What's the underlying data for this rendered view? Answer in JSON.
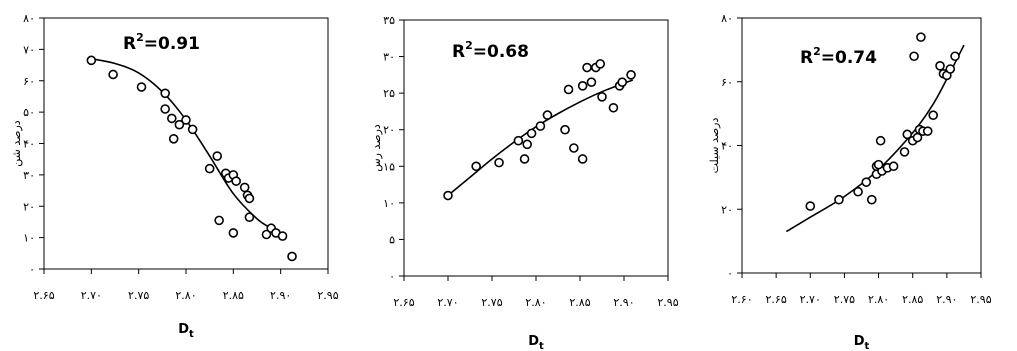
{
  "chart_data": [
    {
      "type": "scatter",
      "id": "sand",
      "ylabel": "درصد شن",
      "xlabel_main": "D",
      "xlabel_sub": "t",
      "r2_label": "R",
      "r2_exp": "2",
      "r2_value": "=0.91",
      "xlim": [
        2.65,
        2.95
      ],
      "ylim": [
        0,
        80
      ],
      "x_ticks": [
        2.65,
        2.7,
        2.75,
        2.8,
        2.85,
        2.9,
        2.95
      ],
      "x_tick_labels": [
        "۲.۶۵",
        "۲.۷۰",
        "۲.۷۵",
        "۲.۸۰",
        "۲.۸۵",
        "۲.۹۰",
        "۲.۹۵"
      ],
      "y_ticks": [
        0,
        10,
        20,
        30,
        40,
        50,
        60,
        70,
        80
      ],
      "y_tick_labels": [
        "۰",
        "۱۰",
        "۲۰",
        "۳۰",
        "۴۰",
        "۵۰",
        "۶۰",
        "۷۰",
        "۸۰"
      ],
      "points": [
        [
          2.7,
          66.5
        ],
        [
          2.723,
          62
        ],
        [
          2.753,
          58
        ],
        [
          2.778,
          56
        ],
        [
          2.778,
          51
        ],
        [
          2.785,
          48
        ],
        [
          2.793,
          46
        ],
        [
          2.787,
          41.5
        ],
        [
          2.8,
          47.5
        ],
        [
          2.807,
          44.5
        ],
        [
          2.825,
          32
        ],
        [
          2.833,
          36
        ],
        [
          2.842,
          30.5
        ],
        [
          2.845,
          29
        ],
        [
          2.85,
          30
        ],
        [
          2.853,
          28
        ],
        [
          2.862,
          26
        ],
        [
          2.865,
          23.5
        ],
        [
          2.867,
          22.5
        ],
        [
          2.835,
          15.5
        ],
        [
          2.85,
          11.5
        ],
        [
          2.867,
          16.5
        ],
        [
          2.885,
          11
        ],
        [
          2.89,
          13
        ],
        [
          2.895,
          11.5
        ],
        [
          2.902,
          10.5
        ],
        [
          2.912,
          4
        ]
      ],
      "trend": [
        [
          2.7,
          67
        ],
        [
          2.725,
          65.5
        ],
        [
          2.75,
          62.5
        ],
        [
          2.775,
          56.5
        ],
        [
          2.8,
          47.5
        ],
        [
          2.825,
          36
        ],
        [
          2.85,
          24
        ],
        [
          2.875,
          16
        ],
        [
          2.89,
          13
        ],
        [
          2.905,
          10.5
        ]
      ]
    },
    {
      "type": "scatter",
      "id": "clay",
      "ylabel": "درصد رس",
      "xlabel_main": "D",
      "xlabel_sub": "t",
      "r2_label": "R",
      "r2_exp": "2",
      "r2_value": "=0.68",
      "xlim": [
        2.65,
        2.95
      ],
      "ylim": [
        0,
        35
      ],
      "x_ticks": [
        2.65,
        2.7,
        2.75,
        2.8,
        2.85,
        2.9,
        2.95
      ],
      "x_tick_labels": [
        "۲.۶۵",
        "۲.۷۰",
        "۲.۷۵",
        "۲.۸۰",
        "۲.۸۵",
        "۲.۹۰",
        "۲.۹۵"
      ],
      "y_ticks": [
        0,
        5,
        10,
        15,
        20,
        25,
        30,
        35
      ],
      "y_tick_labels": [
        "۰",
        "۵",
        "۱۰",
        "۱۵",
        "۲۰",
        "۲۵",
        "۳۰",
        "۳۵"
      ],
      "points": [
        [
          2.7,
          11
        ],
        [
          2.732,
          15
        ],
        [
          2.758,
          15.5
        ],
        [
          2.78,
          18.5
        ],
        [
          2.79,
          18
        ],
        [
          2.795,
          19.5
        ],
        [
          2.787,
          16
        ],
        [
          2.805,
          20.5
        ],
        [
          2.813,
          22
        ],
        [
          2.833,
          20
        ],
        [
          2.837,
          25.5
        ],
        [
          2.843,
          17.5
        ],
        [
          2.853,
          26
        ],
        [
          2.858,
          28.5
        ],
        [
          2.853,
          16
        ],
        [
          2.863,
          26.5
        ],
        [
          2.868,
          28.5
        ],
        [
          2.873,
          29
        ],
        [
          2.875,
          24.5
        ],
        [
          2.888,
          23
        ],
        [
          2.895,
          26
        ],
        [
          2.898,
          26.5
        ],
        [
          2.908,
          27.5
        ]
      ],
      "trend": [
        [
          2.7,
          11
        ],
        [
          2.725,
          13.5
        ],
        [
          2.75,
          16
        ],
        [
          2.775,
          18.3
        ],
        [
          2.8,
          20.4
        ],
        [
          2.825,
          22.2
        ],
        [
          2.85,
          23.8
        ],
        [
          2.875,
          25.2
        ],
        [
          2.91,
          26.8
        ]
      ]
    },
    {
      "type": "scatter",
      "id": "silt",
      "ylabel": "درصد سیلت",
      "xlabel_main": "D",
      "xlabel_sub": "t",
      "r2_label": "R",
      "r2_exp": "2",
      "r2_value": "=0.74",
      "xlim": [
        2.6,
        2.95
      ],
      "ylim": [
        0,
        80
      ],
      "x_ticks": [
        2.6,
        2.65,
        2.7,
        2.75,
        2.8,
        2.85,
        2.9,
        2.95
      ],
      "x_tick_labels": [
        "۲.۶۰",
        "۲.۶۵",
        "۲.۷۰",
        "۲.۷۵",
        "۲.۸۰",
        "۲.۸۵",
        "۲.۹۰",
        "۲.۹۵"
      ],
      "y_ticks": [
        0,
        20,
        40,
        60,
        80
      ],
      "y_tick_labels": [
        "۰",
        "۲۰",
        "۴۰",
        "۶۰",
        "۸۰"
      ],
      "points": [
        [
          2.7,
          21
        ],
        [
          2.742,
          23
        ],
        [
          2.77,
          25.5
        ],
        [
          2.782,
          28.5
        ],
        [
          2.79,
          23
        ],
        [
          2.797,
          31
        ],
        [
          2.797,
          33.5
        ],
        [
          2.805,
          32
        ],
        [
          2.8,
          34
        ],
        [
          2.803,
          41.5
        ],
        [
          2.813,
          33
        ],
        [
          2.822,
          33.5
        ],
        [
          2.838,
          38
        ],
        [
          2.842,
          43.5
        ],
        [
          2.85,
          41.5
        ],
        [
          2.857,
          42.5
        ],
        [
          2.86,
          45
        ],
        [
          2.865,
          44.5
        ],
        [
          2.872,
          44.5
        ],
        [
          2.88,
          49.5
        ],
        [
          2.852,
          68
        ],
        [
          2.862,
          74
        ],
        [
          2.89,
          65
        ],
        [
          2.895,
          62.5
        ],
        [
          2.9,
          62
        ],
        [
          2.905,
          64
        ],
        [
          2.912,
          68
        ]
      ],
      "trend": [
        [
          2.665,
          13
        ],
        [
          2.7,
          17.5
        ],
        [
          2.75,
          24
        ],
        [
          2.8,
          32.5
        ],
        [
          2.85,
          44
        ],
        [
          2.88,
          53
        ],
        [
          2.905,
          63
        ],
        [
          2.925,
          71.5
        ]
      ]
    }
  ]
}
